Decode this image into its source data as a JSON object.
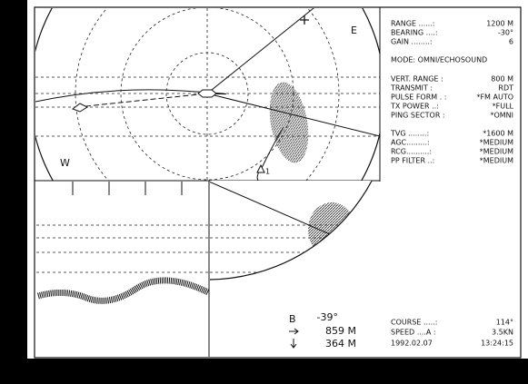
{
  "compass": {
    "east": "E",
    "west": "W",
    "target": "1"
  },
  "settings": {
    "group1": [
      [
        "RANGE ......:",
        "1200 M"
      ],
      [
        "BEARING ....:",
        "-30°"
      ],
      [
        "GAIN ........:",
        "6"
      ]
    ],
    "mode": "MODE: OMNI/ECHOSOUND",
    "group2": [
      [
        "VERT. RANGE :",
        "800 M"
      ],
      [
        "TRANSMIT :",
        "RDT"
      ],
      [
        "PULSE FORM . :",
        "*FM AUTO"
      ],
      [
        "TX POWER ..:",
        "*FULL"
      ],
      [
        "PING SECTOR :",
        "*OMNI"
      ]
    ],
    "group3": [
      [
        "TVG ........:",
        "*1600 M"
      ],
      [
        "AGC.........:",
        "*MEDIUM"
      ],
      [
        "RCG..........:",
        "*MEDIUM"
      ],
      [
        "PP FILTER ..:",
        "*MEDIUM"
      ]
    ]
  },
  "readout": {
    "bearing_label": "B",
    "bearing": "-39°",
    "distance": "859 M",
    "depth": "364 M"
  },
  "status": {
    "course_label": "COURSE .....:",
    "course": "114°",
    "speed_label": "SPEED ....A :",
    "speed": "3.5KN",
    "date": "1992.02.07",
    "time": "13:24:15"
  }
}
